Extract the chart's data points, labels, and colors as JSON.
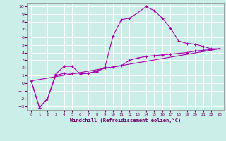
{
  "xlabel": "Windchill (Refroidissement éolien,°C)",
  "xlim": [
    -0.5,
    23.5
  ],
  "ylim": [
    -3.5,
    10.5
  ],
  "xticks": [
    0,
    1,
    2,
    3,
    4,
    5,
    6,
    7,
    8,
    9,
    10,
    11,
    12,
    13,
    14,
    15,
    16,
    17,
    18,
    19,
    20,
    21,
    22,
    23
  ],
  "yticks": [
    -3,
    -2,
    -1,
    0,
    1,
    2,
    3,
    4,
    5,
    6,
    7,
    8,
    9,
    10
  ],
  "background_color": "#cceee8",
  "line_color": "#aa00aa",
  "grid_color": "#aadddd",
  "line1_x": [
    0,
    1,
    2,
    3,
    4,
    5,
    6,
    7,
    8,
    9,
    10,
    11,
    12,
    13,
    14,
    15,
    16,
    17,
    18,
    19,
    20,
    21,
    22,
    23
  ],
  "line1_y": [
    0.3,
    -3.2,
    -2.0,
    1.2,
    2.2,
    2.2,
    1.2,
    1.3,
    1.6,
    2.1,
    6.2,
    8.3,
    8.5,
    9.2,
    10.0,
    9.5,
    8.5,
    7.2,
    5.5,
    5.2,
    5.1,
    4.8,
    4.5,
    4.5
  ],
  "line2_x": [
    0,
    1,
    2,
    3,
    4,
    5,
    6,
    7,
    8,
    9,
    10,
    11,
    12,
    13,
    14,
    15,
    16,
    17,
    18,
    19,
    20,
    21,
    22,
    23
  ],
  "line2_y": [
    0.3,
    -3.2,
    -2.0,
    1.0,
    1.3,
    1.3,
    1.3,
    1.3,
    1.5,
    2.0,
    2.1,
    2.3,
    3.0,
    3.3,
    3.5,
    3.6,
    3.7,
    3.8,
    3.9,
    4.0,
    4.2,
    4.3,
    4.4,
    4.5
  ],
  "line3_x": [
    0,
    23
  ],
  "line3_y": [
    0.3,
    4.5
  ]
}
